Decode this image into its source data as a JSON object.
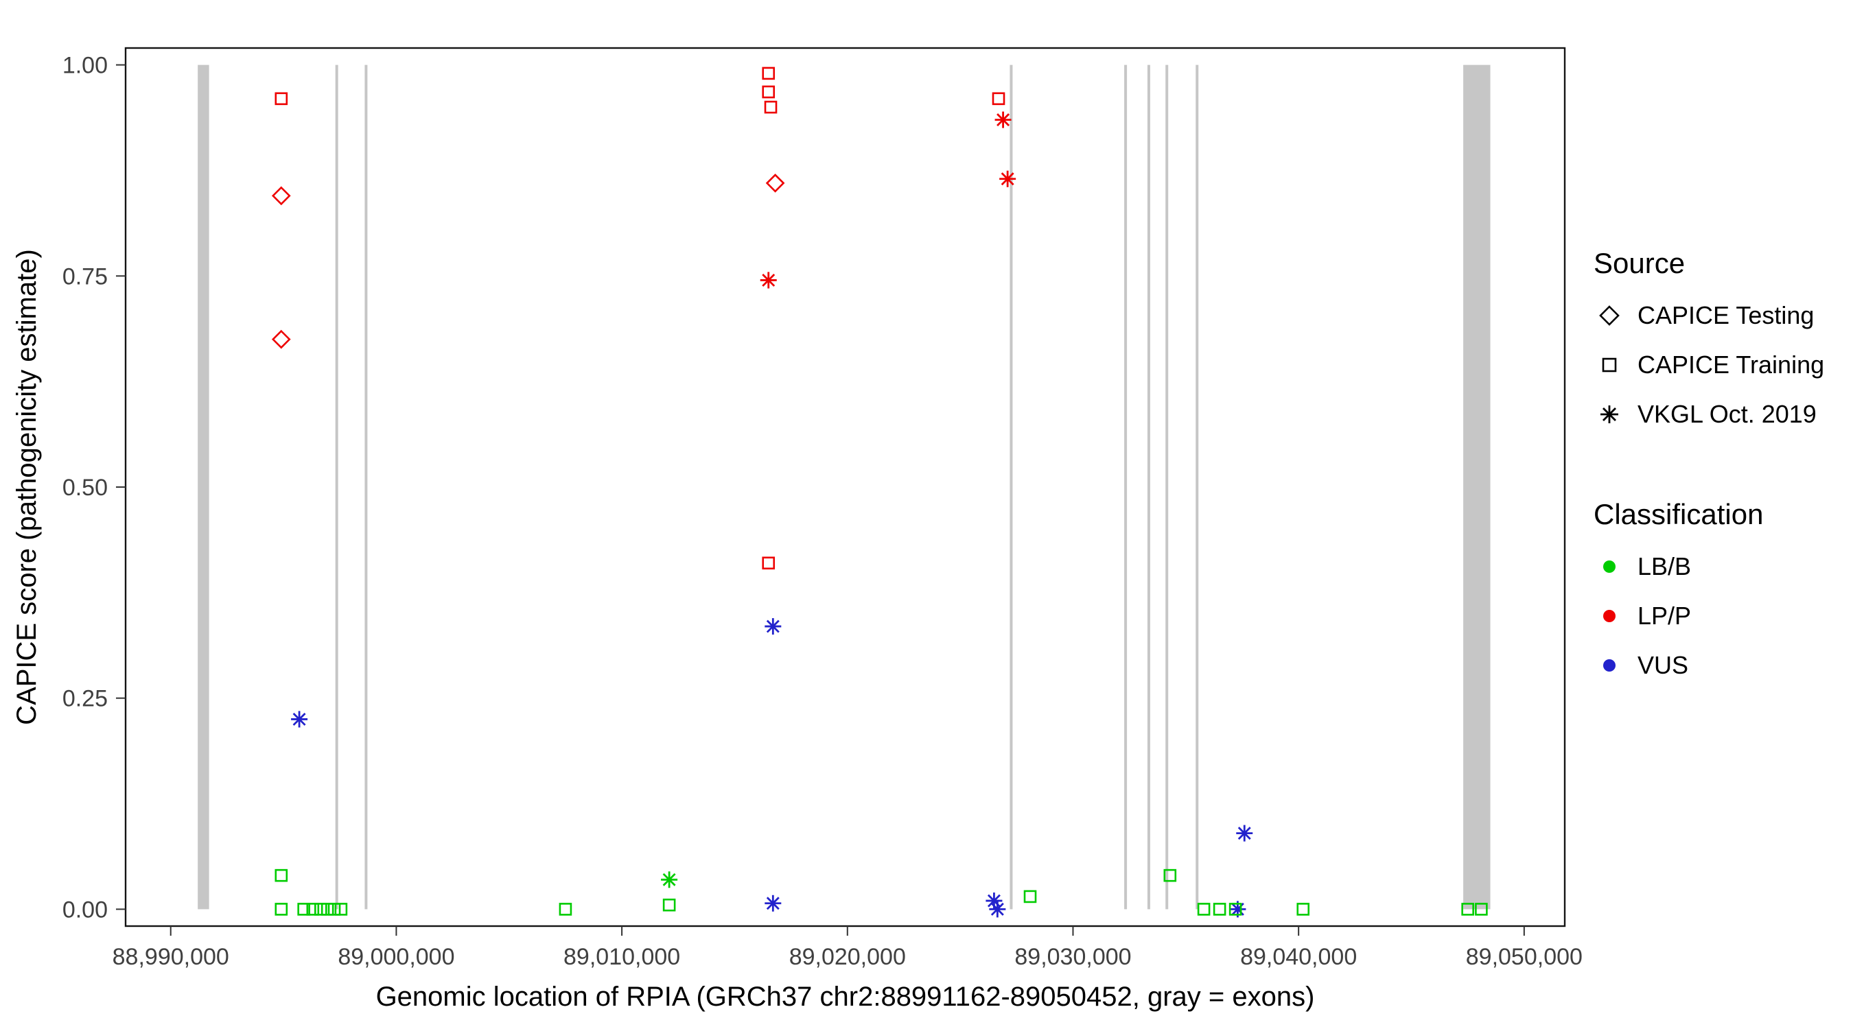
{
  "chart_data": {
    "type": "scatter",
    "xlabel": "Genomic location of RPIA (GRCh37 chr2:88991162-89050452, gray = exons)",
    "ylabel": "CAPICE score (pathogenicity estimate)",
    "x_domain": [
      88988000,
      89051800
    ],
    "y_domain": [
      -0.02,
      1.02
    ],
    "x_ticks": [
      {
        "value": 88990000,
        "label": "88,990,000"
      },
      {
        "value": 89000000,
        "label": "89,000,000"
      },
      {
        "value": 89010000,
        "label": "89,010,000"
      },
      {
        "value": 89020000,
        "label": "89,020,000"
      },
      {
        "value": 89030000,
        "label": "89,030,000"
      },
      {
        "value": 89040000,
        "label": "89,040,000"
      },
      {
        "value": 89050000,
        "label": "89,050,000"
      }
    ],
    "y_ticks": [
      {
        "value": 0.0,
        "label": "0.00"
      },
      {
        "value": 0.25,
        "label": "0.25"
      },
      {
        "value": 0.5,
        "label": "0.50"
      },
      {
        "value": 0.75,
        "label": "0.75"
      },
      {
        "value": 1.0,
        "label": "1.00"
      }
    ],
    "exons": [
      {
        "start": 88991200,
        "end": 88991700
      },
      {
        "start": 88997300,
        "end": 88997420
      },
      {
        "start": 88998600,
        "end": 88998720
      },
      {
        "start": 89027200,
        "end": 89027320
      },
      {
        "start": 89032270,
        "end": 89032390
      },
      {
        "start": 89033300,
        "end": 89033420
      },
      {
        "start": 89034100,
        "end": 89034220
      },
      {
        "start": 89035440,
        "end": 89035560
      },
      {
        "start": 89047300,
        "end": 89048500
      }
    ],
    "shape_by_source": {
      "CAPICE Testing": "diamond",
      "CAPICE Training": "square",
      "VKGL Oct. 2019": "asterisk"
    },
    "points": [
      {
        "x": 88994900,
        "y": 0.96,
        "source": "CAPICE Training",
        "classification": "LP/P"
      },
      {
        "x": 88994900,
        "y": 0.845,
        "source": "CAPICE Testing",
        "classification": "LP/P"
      },
      {
        "x": 88994900,
        "y": 0.675,
        "source": "CAPICE Testing",
        "classification": "LP/P"
      },
      {
        "x": 89016500,
        "y": 0.99,
        "source": "CAPICE Training",
        "classification": "LP/P"
      },
      {
        "x": 89016500,
        "y": 0.968,
        "source": "CAPICE Training",
        "classification": "LP/P"
      },
      {
        "x": 89016600,
        "y": 0.95,
        "source": "CAPICE Training",
        "classification": "LP/P"
      },
      {
        "x": 89016800,
        "y": 0.86,
        "source": "CAPICE Testing",
        "classification": "LP/P"
      },
      {
        "x": 89016500,
        "y": 0.745,
        "source": "VKGL Oct. 2019",
        "classification": "LP/P"
      },
      {
        "x": 89016500,
        "y": 0.41,
        "source": "CAPICE Training",
        "classification": "LP/P"
      },
      {
        "x": 89026700,
        "y": 0.96,
        "source": "CAPICE Training",
        "classification": "LP/P"
      },
      {
        "x": 89026900,
        "y": 0.935,
        "source": "VKGL Oct. 2019",
        "classification": "LP/P"
      },
      {
        "x": 89027100,
        "y": 0.865,
        "source": "VKGL Oct. 2019",
        "classification": "LP/P"
      },
      {
        "x": 88995700,
        "y": 0.225,
        "source": "VKGL Oct. 2019",
        "classification": "VUS"
      },
      {
        "x": 89016700,
        "y": 0.335,
        "source": "VKGL Oct. 2019",
        "classification": "VUS"
      },
      {
        "x": 89016700,
        "y": 0.007,
        "source": "VKGL Oct. 2019",
        "classification": "VUS"
      },
      {
        "x": 89026500,
        "y": 0.01,
        "source": "VKGL Oct. 2019",
        "classification": "VUS"
      },
      {
        "x": 89026650,
        "y": 0.0,
        "source": "VKGL Oct. 2019",
        "classification": "VUS"
      },
      {
        "x": 89037600,
        "y": 0.09,
        "source": "VKGL Oct. 2019",
        "classification": "VUS"
      },
      {
        "x": 89037300,
        "y": 0.0,
        "source": "VKGL Oct. 2019",
        "classification": "VUS"
      },
      {
        "x": 88994900,
        "y": 0.04,
        "source": "CAPICE Training",
        "classification": "LB/B"
      },
      {
        "x": 88994900,
        "y": 0.0,
        "source": "CAPICE Training",
        "classification": "LB/B"
      },
      {
        "x": 88995900,
        "y": 0.0,
        "source": "CAPICE Training",
        "classification": "LB/B"
      },
      {
        "x": 88996300,
        "y": 0.0,
        "source": "CAPICE Training",
        "classification": "LB/B"
      },
      {
        "x": 88996650,
        "y": 0.0,
        "source": "CAPICE Training",
        "classification": "LB/B"
      },
      {
        "x": 88996950,
        "y": 0.0,
        "source": "CAPICE Training",
        "classification": "LB/B"
      },
      {
        "x": 88997250,
        "y": 0.0,
        "source": "CAPICE Training",
        "classification": "LB/B"
      },
      {
        "x": 88997550,
        "y": 0.0,
        "source": "CAPICE Training",
        "classification": "LB/B"
      },
      {
        "x": 89007500,
        "y": 0.0,
        "source": "CAPICE Training",
        "classification": "LB/B"
      },
      {
        "x": 89012100,
        "y": 0.005,
        "source": "CAPICE Training",
        "classification": "LB/B"
      },
      {
        "x": 89012100,
        "y": 0.035,
        "source": "VKGL Oct. 2019",
        "classification": "LB/B"
      },
      {
        "x": 89028100,
        "y": 0.015,
        "source": "CAPICE Training",
        "classification": "LB/B"
      },
      {
        "x": 89034300,
        "y": 0.04,
        "source": "CAPICE Training",
        "classification": "LB/B"
      },
      {
        "x": 89035800,
        "y": 0.0,
        "source": "CAPICE Training",
        "classification": "LB/B"
      },
      {
        "x": 89036500,
        "y": 0.0,
        "source": "CAPICE Training",
        "classification": "LB/B"
      },
      {
        "x": 89037200,
        "y": 0.0,
        "source": "CAPICE Training",
        "classification": "LB/B"
      },
      {
        "x": 89040200,
        "y": 0.0,
        "source": "CAPICE Training",
        "classification": "LB/B"
      },
      {
        "x": 89047500,
        "y": 0.0,
        "source": "CAPICE Training",
        "classification": "LB/B"
      },
      {
        "x": 89048100,
        "y": 0.0,
        "source": "CAPICE Training",
        "classification": "LB/B"
      }
    ],
    "legend": {
      "source": {
        "title": "Source",
        "items": [
          {
            "label": "CAPICE Testing",
            "shape": "diamond"
          },
          {
            "label": "CAPICE Training",
            "shape": "square"
          },
          {
            "label": "VKGL Oct. 2019",
            "shape": "asterisk"
          }
        ]
      },
      "classification": {
        "title": "Classification",
        "items": [
          {
            "label": "LB/B",
            "color": "#00CC00"
          },
          {
            "label": "LP/P",
            "color": "#EE0000"
          },
          {
            "label": "VUS",
            "color": "#2222CC"
          }
        ]
      }
    },
    "colors": {
      "LB/B": "#00CC00",
      "LP/P": "#EE0000",
      "VUS": "#2222CC",
      "exon": "#C6C6C6",
      "axis_text": "#404040",
      "panel_border": "#141414"
    }
  }
}
